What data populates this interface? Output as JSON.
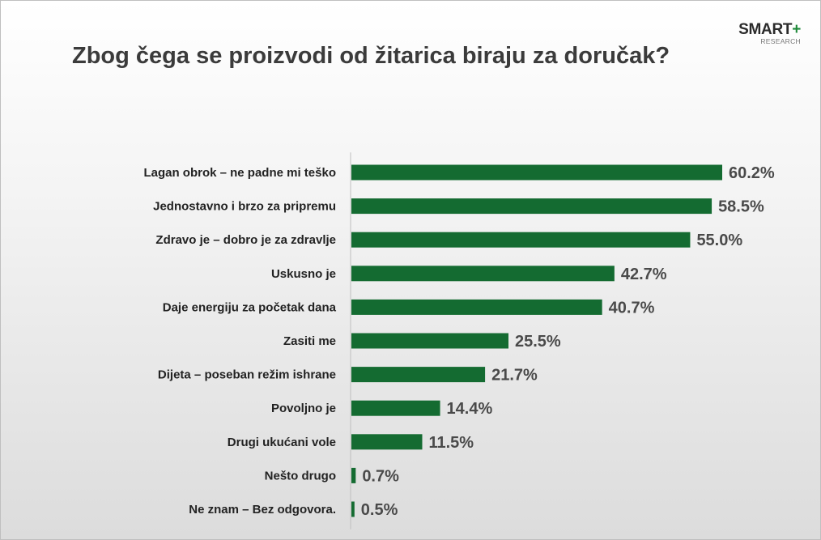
{
  "header": {
    "title": "Zbog čega se proizvodi od žitarica biraju za doručak?",
    "logo_main": "SMART",
    "logo_plus": "+",
    "logo_sub": "RESEARCH"
  },
  "colors": {
    "bar": "#146b31",
    "label": "#222222",
    "value": "#4a4a4a",
    "axis": "#bfbfbf"
  },
  "chart_data": {
    "type": "bar",
    "orientation": "horizontal",
    "title": "Zbog čega se proizvodi od žitarica biraju za doručak?",
    "categories": [
      "Lagan obrok – ne padne mi teško",
      "Jednostavno i brzo za pripremu",
      "Zdravo je – dobro je za zdravlje",
      "Uskusno je",
      "Daje energiju za početak dana",
      "Zasiti me",
      "Dijeta – poseban režim ishrane",
      "Povoljno je",
      "Drugi ukućani vole",
      "Nešto drugo",
      "Ne znam – Bez odgovora."
    ],
    "values": [
      60.2,
      58.5,
      55.0,
      42.7,
      40.7,
      25.5,
      21.7,
      14.4,
      11.5,
      0.7,
      0.5
    ],
    "value_labels": [
      "60.2%",
      "58.5%",
      "55.0%",
      "42.7%",
      "40.7%",
      "25.5%",
      "21.7%",
      "14.4%",
      "11.5%",
      "0.7%",
      "0.5%"
    ],
    "xlim": [
      0,
      60.2
    ],
    "grid": false,
    "legend": "none"
  }
}
